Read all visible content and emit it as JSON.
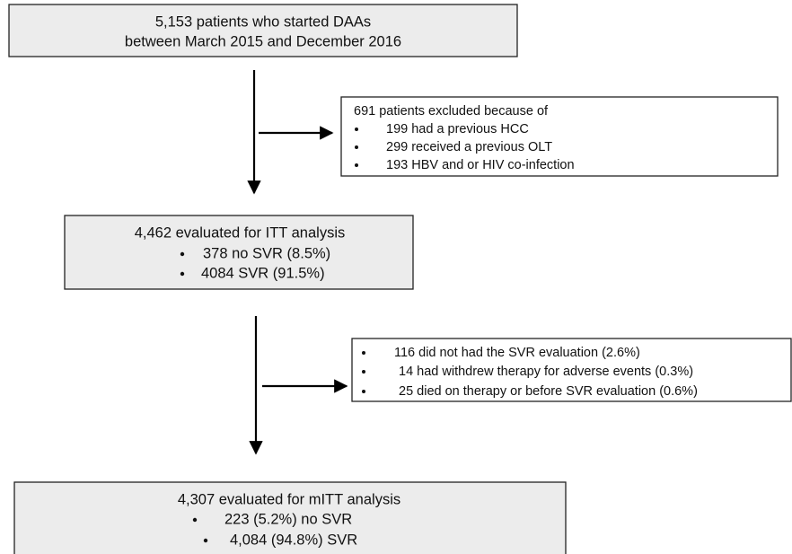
{
  "nodes": [
    {
      "lines": [
        "5,153 patients who started DAAs",
        "between March 2015 and December 2016"
      ]
    },
    {
      "title": "691  patients excluded because of",
      "items": [
        "199  had a previous HCC",
        "299  received a previous OLT",
        "193  HBV and or HIV co-infection"
      ]
    },
    {
      "title": "4,462 evaluated for ITT analysis",
      "items": [
        "378 no SVR (8.5%)",
        "4084 SVR (91.5%)"
      ]
    },
    {
      "items": [
        "116 did not had the SVR evaluation (2.6%)",
        "14 had withdrew therapy for adverse events (0.3%)",
        "25 died on therapy or before SVR evaluation (0.6%)"
      ]
    },
    {
      "title": "4,307 evaluated for mITT analysis",
      "items": [
        "223 (5.2%) no SVR",
        "4,084 (94.8%) SVR"
      ]
    }
  ]
}
